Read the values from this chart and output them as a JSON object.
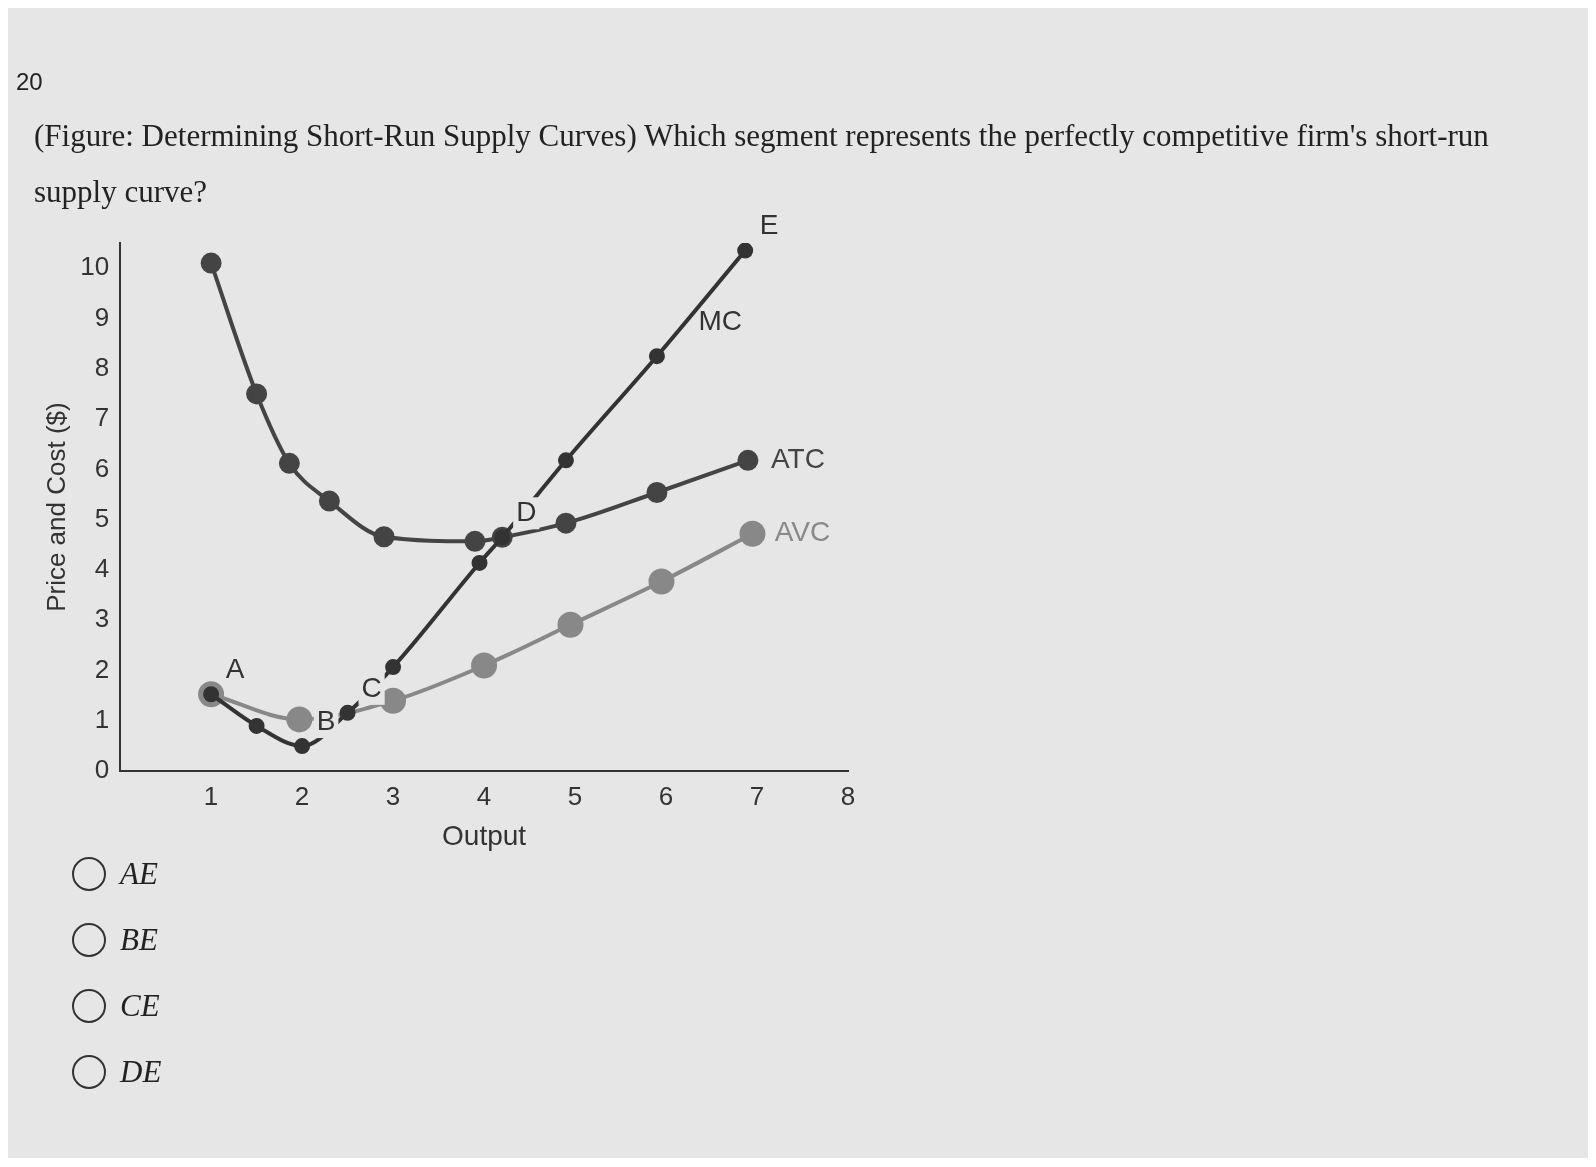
{
  "chart_data": {
    "type": "line",
    "title": "(Figure: Determining Short-Run Supply Curves) Which segment represents the perfectly competitive firm's short-run supply curve?",
    "xlabel": "Output",
    "ylabel": "Price and Cost ($)",
    "xlim": [
      0,
      8
    ],
    "xticks": [
      1,
      2,
      3,
      4,
      5,
      6,
      7,
      8
    ],
    "ylim": [
      0,
      10.5
    ],
    "yticks": [
      0,
      1,
      2,
      3,
      4,
      5,
      6,
      7,
      8,
      9,
      10
    ],
    "grid": false,
    "legend": false,
    "marker": "circle",
    "line_style": "solid",
    "series": [
      {
        "name": "MC",
        "color": "#333333",
        "x": [
          1,
          1.5,
          2,
          2.5,
          3,
          3.95,
          4.2,
          4.9,
          5.9,
          6.87
        ],
        "values": [
          1.53,
          0.9,
          0.5,
          1.16,
          2.07,
          4.14,
          4.65,
          6.18,
          8.25,
          10.35
        ]
      },
      {
        "name": "ATC",
        "color": "#444444",
        "x": [
          1,
          1.5,
          1.86,
          2.3,
          2.9,
          3.9,
          4.2,
          4.9,
          5.9,
          6.9
        ],
        "values": [
          10.1,
          7.5,
          6.12,
          5.37,
          4.66,
          4.57,
          4.65,
          4.93,
          5.54,
          6.18
        ]
      },
      {
        "name": "AVC",
        "color": "#888888",
        "x": [
          1,
          1.97,
          3,
          4,
          4.95,
          5.95,
          6.95
        ],
        "values": [
          1.53,
          1.03,
          1.4,
          2.1,
          2.91,
          3.77,
          4.72
        ]
      }
    ],
    "annotations": [
      "20",
      {
        "text": "A",
        "x": 1,
        "y": 1.53
      },
      {
        "text": "B",
        "x": 2,
        "y": 0.5
      },
      {
        "text": "C",
        "x": 2.5,
        "y": 1.16
      },
      {
        "text": "D",
        "x": 4.2,
        "y": 4.65
      },
      {
        "text": "E",
        "x": 6.87,
        "y": 10.35
      },
      "AE",
      "BE",
      "CE",
      "DE"
    ]
  }
}
